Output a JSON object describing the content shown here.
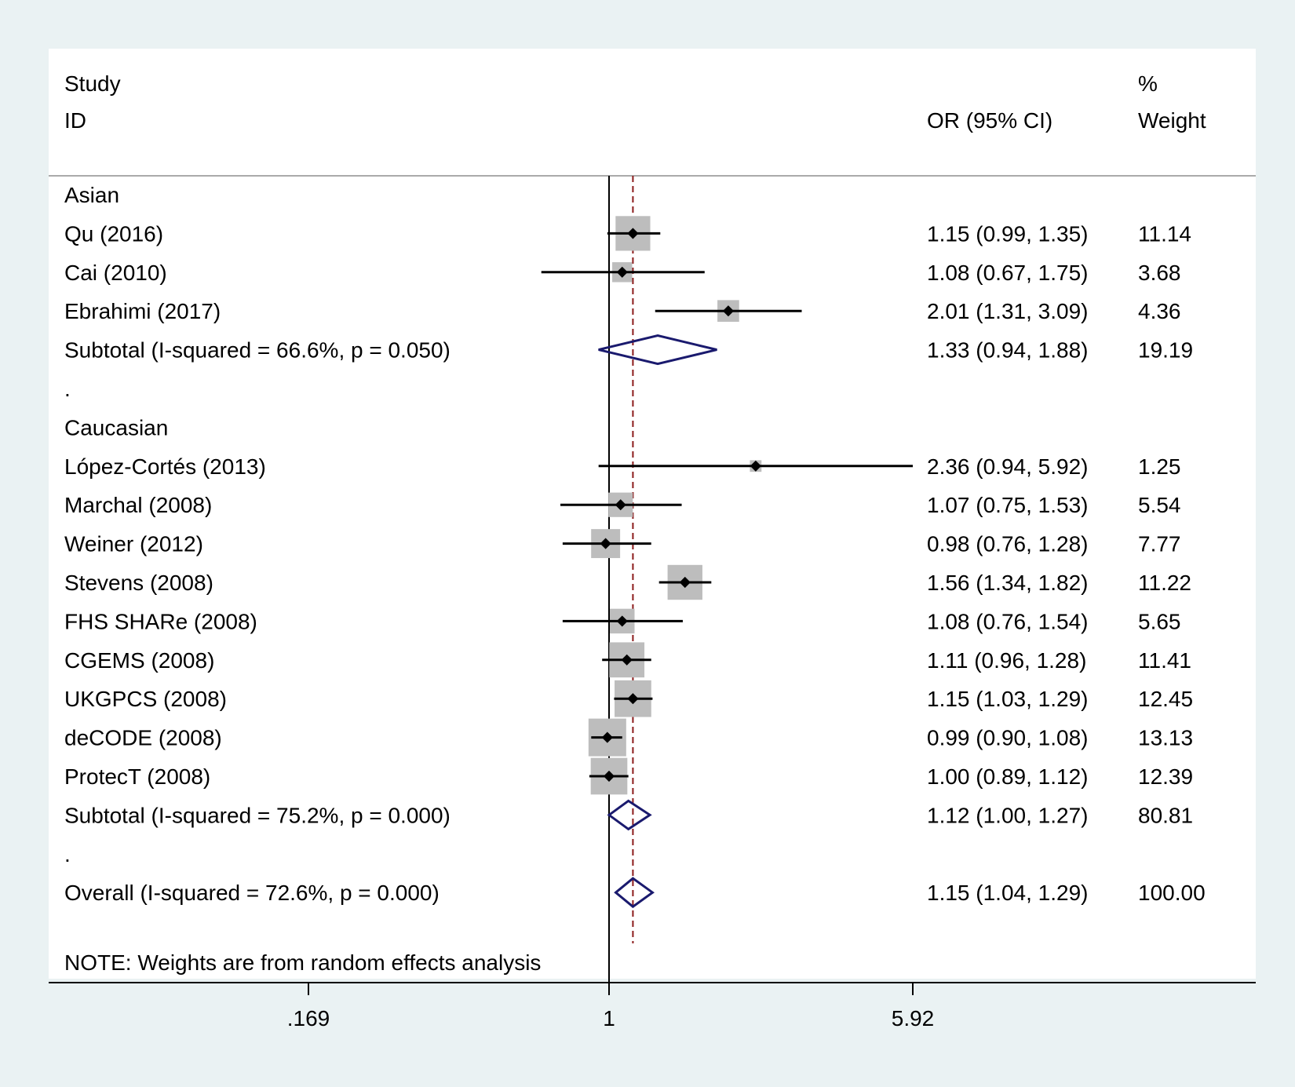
{
  "chart_data": {
    "type": "forest",
    "header": {
      "col1_line1": "Study",
      "col1_line2": "ID",
      "col2": "OR (95% CI)",
      "col3_line1": "%",
      "col3_line2": "Weight"
    },
    "x_scale": "log",
    "x_ticks": [
      {
        "value": 0.169,
        "label": ".169"
      },
      {
        "value": 1,
        "label": "1"
      },
      {
        "value": 5.92,
        "label": "5.92"
      }
    ],
    "overall_effect": 1.15,
    "rows": [
      {
        "kind": "group",
        "label": "Asian"
      },
      {
        "kind": "study",
        "label": "Qu (2016)",
        "or": 1.15,
        "lo": 0.99,
        "hi": 1.35,
        "ci_text": "1.15 (0.99, 1.35)",
        "weight": 11.14,
        "weight_text": "11.14"
      },
      {
        "kind": "study",
        "label": "Cai (2010)",
        "or": 1.08,
        "lo": 0.67,
        "hi": 1.75,
        "ci_text": "1.08 (0.67, 1.75)",
        "weight": 3.68,
        "weight_text": "3.68"
      },
      {
        "kind": "study",
        "label": "Ebrahimi (2017)",
        "or": 2.01,
        "lo": 1.31,
        "hi": 3.09,
        "ci_text": "2.01 (1.31, 3.09)",
        "weight": 4.36,
        "weight_text": "4.36"
      },
      {
        "kind": "subtotal",
        "label": "Subtotal  (I-squared = 66.6%, p = 0.050)",
        "or": 1.33,
        "lo": 0.94,
        "hi": 1.88,
        "ci_text": "1.33 (0.94, 1.88)",
        "weight_text": "19.19"
      },
      {
        "kind": "spacer",
        "label": "."
      },
      {
        "kind": "group",
        "label": "Caucasian"
      },
      {
        "kind": "study",
        "label": "López-Cortés (2013)",
        "or": 2.36,
        "lo": 0.94,
        "hi": 5.92,
        "ci_text": "2.36 (0.94, 5.92)",
        "weight": 1.25,
        "weight_text": "1.25"
      },
      {
        "kind": "study",
        "label": "Marchal (2008)",
        "or": 1.07,
        "lo": 0.75,
        "hi": 1.53,
        "ci_text": "1.07 (0.75, 1.53)",
        "weight": 5.54,
        "weight_text": "5.54"
      },
      {
        "kind": "study",
        "label": "Weiner (2012)",
        "or": 0.98,
        "lo": 0.76,
        "hi": 1.28,
        "ci_text": "0.98 (0.76, 1.28)",
        "weight": 7.77,
        "weight_text": "7.77"
      },
      {
        "kind": "study",
        "label": "Stevens (2008)",
        "or": 1.56,
        "lo": 1.34,
        "hi": 1.82,
        "ci_text": "1.56 (1.34, 1.82)",
        "weight": 11.22,
        "weight_text": "11.22"
      },
      {
        "kind": "study",
        "label": "FHS SHARe (2008)",
        "or": 1.08,
        "lo": 0.76,
        "hi": 1.54,
        "ci_text": "1.08 (0.76, 1.54)",
        "weight": 5.65,
        "weight_text": "5.65"
      },
      {
        "kind": "study",
        "label": "CGEMS (2008)",
        "or": 1.11,
        "lo": 0.96,
        "hi": 1.28,
        "ci_text": "1.11 (0.96, 1.28)",
        "weight": 11.41,
        "weight_text": "11.41"
      },
      {
        "kind": "study",
        "label": "UKGPCS (2008)",
        "or": 1.15,
        "lo": 1.03,
        "hi": 1.29,
        "ci_text": "1.15 (1.03, 1.29)",
        "weight": 12.45,
        "weight_text": "12.45"
      },
      {
        "kind": "study",
        "label": "deCODE (2008)",
        "or": 0.99,
        "lo": 0.9,
        "hi": 1.08,
        "ci_text": "0.99 (0.90, 1.08)",
        "weight": 13.13,
        "weight_text": "13.13"
      },
      {
        "kind": "study",
        "label": "ProtecT (2008)",
        "or": 1.0,
        "lo": 0.89,
        "hi": 1.12,
        "ci_text": "1.00 (0.89, 1.12)",
        "weight": 12.39,
        "weight_text": "12.39"
      },
      {
        "kind": "subtotal",
        "label": "Subtotal  (I-squared = 75.2%, p = 0.000)",
        "or": 1.12,
        "lo": 1.0,
        "hi": 1.27,
        "ci_text": "1.12 (1.00, 1.27)",
        "weight_text": "80.81"
      },
      {
        "kind": "spacer",
        "label": "."
      },
      {
        "kind": "overall",
        "label": "Overall  (I-squared = 72.6%, p = 0.000)",
        "or": 1.15,
        "lo": 1.04,
        "hi": 1.29,
        "ci_text": "1.15 (1.04, 1.29)",
        "weight_text": "100.00"
      }
    ],
    "note": "NOTE: Weights are from random effects analysis",
    "colors": {
      "background": "#eaf2f3",
      "panel": "#ffffff",
      "box": "#bdbdbd",
      "diamond": "#1a1a6e",
      "reference_line": "#8b1a1a",
      "line": "#000000"
    }
  }
}
